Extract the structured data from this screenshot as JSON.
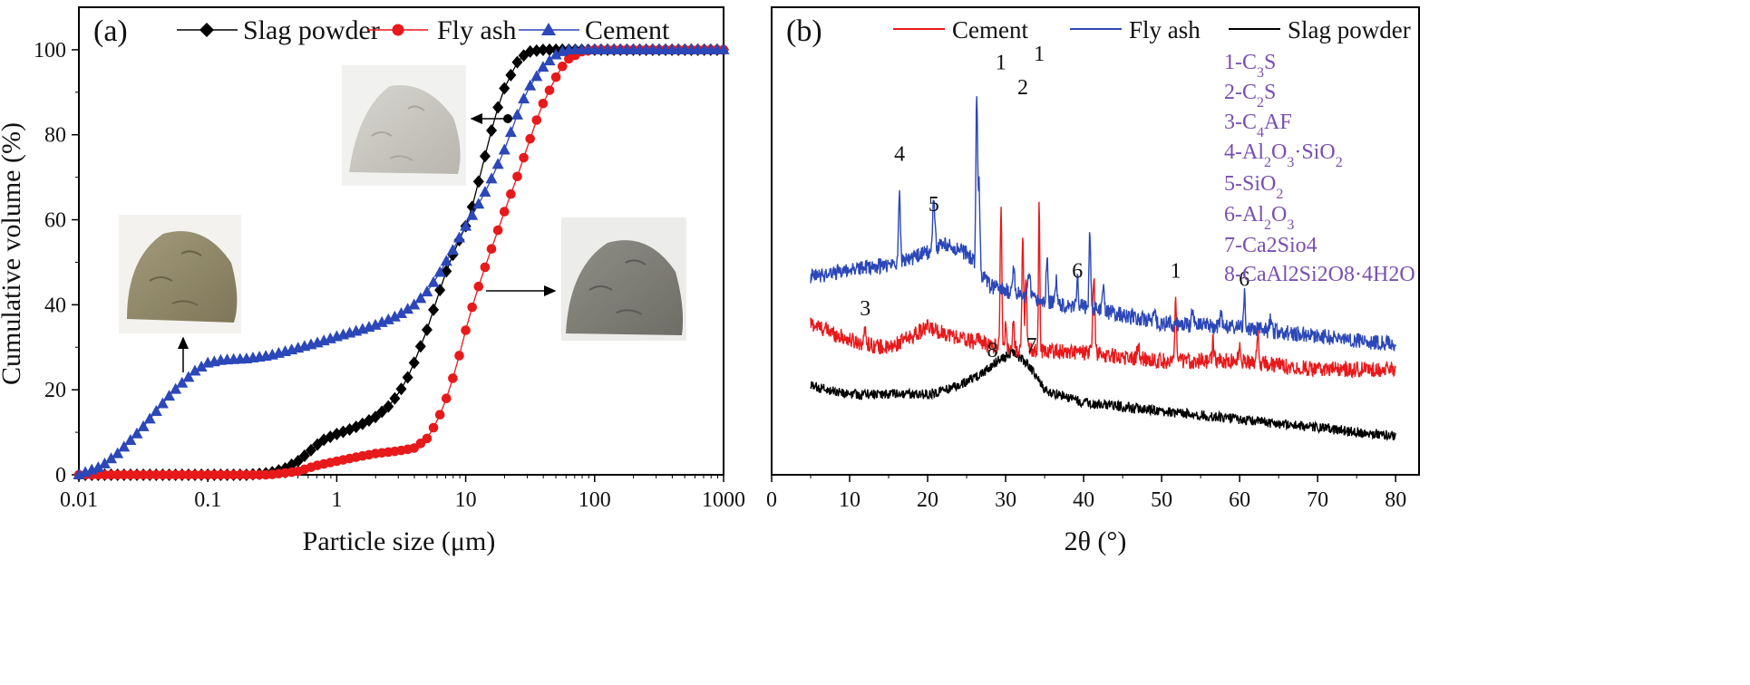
{
  "colors": {
    "slag": "#000000",
    "fly_ash": "#e8191b",
    "cement": "#2b47b8",
    "phase_text": "#7a4fb0"
  },
  "chart_data": [
    {
      "type": "line",
      "panel_label": "(a)",
      "title": "",
      "xlabel": "Particle size (μm)",
      "ylabel": "Cumulative volume (%)",
      "xscale": "log",
      "xlim": [
        0.01,
        1000
      ],
      "ylim": [
        0,
        110
      ],
      "xticks": [
        0.01,
        0.1,
        1,
        10,
        100,
        1000
      ],
      "xtick_labels": [
        "0.01",
        "0.1",
        "1",
        "10",
        "100",
        "1000"
      ],
      "yticks": [
        0,
        20,
        40,
        60,
        80,
        100
      ],
      "ytick_labels": [
        "0",
        "20",
        "40",
        "60",
        "80",
        "100"
      ],
      "legend_position": "top-center",
      "series": [
        {
          "name": "Slag powder",
          "marker": "diamond",
          "color": "#000000",
          "x": [
            0.01,
            0.03,
            0.1,
            0.2,
            0.3,
            0.4,
            0.5,
            0.6,
            0.7,
            0.8,
            1.0,
            1.2,
            1.5,
            2.0,
            2.5,
            3.0,
            3.5,
            4.0,
            5.0,
            6.0,
            7.0,
            8.0,
            9.0,
            10.0,
            11.0,
            12.0,
            14.0,
            16.0,
            18.0,
            20.0,
            25.0,
            30.0,
            40.0,
            60.0,
            100.0,
            1000.0
          ],
          "y": [
            0,
            0,
            0,
            0,
            0.4,
            1.5,
            3.2,
            5.2,
            7.0,
            8.3,
            9.6,
            10.4,
            11.6,
            13.6,
            16.0,
            19.0,
            22.5,
            26.5,
            34.0,
            41.5,
            47.5,
            52.0,
            55.5,
            58.5,
            62.0,
            66.5,
            74.5,
            81.5,
            87.0,
            91.0,
            97.0,
            99.5,
            100,
            100,
            100,
            100
          ]
        },
        {
          "name": "Fly ash",
          "marker": "circle",
          "color": "#e8191b",
          "x": [
            0.01,
            0.1,
            0.3,
            0.5,
            0.7,
            1.0,
            1.5,
            2.0,
            3.0,
            4.0,
            5.0,
            6.0,
            7.0,
            8.0,
            9.0,
            10.0,
            11.0,
            12.0,
            13.0,
            14.0,
            16.0,
            18.0,
            20.0,
            25.0,
            30.0,
            35.0,
            40.0,
            50.0,
            60.0,
            80.0,
            100.0,
            1000.0
          ],
          "y": [
            0,
            0,
            0,
            0.8,
            2.2,
            3.2,
            4.3,
            5.0,
            5.6,
            6.3,
            8.5,
            12.5,
            17.5,
            23.0,
            28.5,
            34.0,
            38.5,
            42.5,
            45.5,
            48.5,
            53.5,
            58.0,
            62.0,
            70.0,
            77.0,
            83.0,
            87.5,
            93.5,
            97.5,
            99.6,
            100,
            100
          ]
        },
        {
          "name": "Cement",
          "marker": "triangle",
          "color": "#2b47b8",
          "x": [
            0.01,
            0.015,
            0.02,
            0.03,
            0.04,
            0.05,
            0.06,
            0.07,
            0.08,
            0.1,
            0.13,
            0.2,
            0.3,
            0.5,
            0.7,
            1.0,
            1.5,
            2.0,
            3.0,
            4.0,
            5.0,
            6.0,
            7.0,
            8.0,
            9.0,
            10.0,
            12.0,
            15.0,
            20.0,
            25.0,
            30.0,
            40.0,
            50.0,
            60.0,
            70.0,
            100.0,
            1000.0
          ],
          "y": [
            0,
            2.0,
            5.0,
            10.5,
            15.0,
            18.5,
            21.0,
            22.8,
            24.5,
            26.3,
            27.0,
            27.3,
            28.0,
            29.8,
            31.0,
            32.5,
            34.0,
            35.2,
            37.5,
            40.0,
            43.0,
            46.5,
            50.0,
            53.0,
            56.0,
            58.5,
            62.5,
            68.0,
            76.5,
            84.5,
            90.5,
            96.0,
            98.8,
            100,
            100,
            100,
            100
          ]
        }
      ],
      "annotations": [
        "slag powder photo → Slag powder curve",
        "fly ash photo → Fly ash curve",
        "cement photo → Cement curve"
      ]
    },
    {
      "type": "line",
      "panel_label": "(b)",
      "title": "",
      "xlabel": "2θ (°)",
      "ylabel": "",
      "xlim": [
        0,
        83
      ],
      "xticks": [
        0,
        10,
        20,
        30,
        40,
        50,
        60,
        70,
        80
      ],
      "xtick_labels": [
        "0",
        "10",
        "20",
        "30",
        "40",
        "50",
        "60",
        "70",
        "80"
      ],
      "legend_position": "top",
      "series": [
        {
          "name": "Cement",
          "color": "#e8191b",
          "baseline": [
            [
              5,
              35
            ],
            [
              10,
              31
            ],
            [
              15,
              29
            ],
            [
              20,
              34
            ],
            [
              25,
              31
            ],
            [
              30,
              29
            ],
            [
              40,
              28
            ],
            [
              50,
              26
            ],
            [
              60,
              26
            ],
            [
              70,
              24
            ],
            [
              80,
              24
            ]
          ],
          "peaks": [
            [
              12.0,
              3,
              0.2
            ],
            [
              26.5,
              2,
              0.2
            ],
            [
              29.4,
              34,
              0.15
            ],
            [
              30.0,
              6,
              0.15
            ],
            [
              31.0,
              6,
              0.15
            ],
            [
              32.2,
              27,
              0.15
            ],
            [
              32.6,
              18,
              0.15
            ],
            [
              34.3,
              37,
              0.12
            ],
            [
              41.3,
              18,
              0.2
            ],
            [
              47.0,
              3,
              0.2
            ],
            [
              51.8,
              14,
              0.15
            ],
            [
              56.6,
              5,
              0.15
            ],
            [
              60.0,
              3,
              0.2
            ],
            [
              62.3,
              8,
              0.15
            ]
          ]
        },
        {
          "name": "Fly ash",
          "color": "#2b47b8",
          "baseline": [
            [
              5,
              46
            ],
            [
              10,
              48
            ],
            [
              15,
              49
            ],
            [
              20,
              52
            ],
            [
              22,
              54
            ],
            [
              25,
              52
            ],
            [
              28,
              44
            ],
            [
              35,
              40
            ],
            [
              40,
              39
            ],
            [
              50,
              35
            ],
            [
              60,
              34
            ],
            [
              70,
              32
            ],
            [
              80,
              30
            ]
          ],
          "peaks": [
            [
              16.4,
              18,
              0.15
            ],
            [
              20.8,
              12,
              0.2
            ],
            [
              26.3,
              42,
              0.15
            ],
            [
              26.6,
              20,
              0.15
            ],
            [
              31.0,
              6,
              0.2
            ],
            [
              33.0,
              6,
              0.2
            ],
            [
              35.3,
              11,
              0.15
            ],
            [
              36.5,
              7,
              0.15
            ],
            [
              39.2,
              8,
              0.15
            ],
            [
              40.8,
              18,
              0.15
            ],
            [
              42.5,
              6,
              0.2
            ],
            [
              49.0,
              3,
              0.2
            ],
            [
              54.0,
              4,
              0.2
            ],
            [
              57.6,
              3,
              0.2
            ],
            [
              60.6,
              8,
              0.15
            ],
            [
              64.0,
              3,
              0.2
            ]
          ]
        },
        {
          "name": "Slag powder",
          "color": "#000000",
          "baseline": [
            [
              5,
              20
            ],
            [
              10,
              18
            ],
            [
              15,
              18
            ],
            [
              20,
              18
            ],
            [
              24,
              20
            ],
            [
              27,
              23
            ],
            [
              29,
              26
            ],
            [
              31,
              28
            ],
            [
              33,
              25
            ],
            [
              35,
              19
            ],
            [
              40,
              16
            ],
            [
              50,
              14
            ],
            [
              60,
              12
            ],
            [
              70,
              10
            ],
            [
              80,
              8
            ]
          ]
        }
      ],
      "peak_labels": [
        {
          "text": "1",
          "x": 29.4,
          "y": 96
        },
        {
          "text": "1",
          "x": 34.3,
          "y": 98
        },
        {
          "text": "2",
          "x": 32.2,
          "y": 90
        },
        {
          "text": "4",
          "x": 16.4,
          "y": 74
        },
        {
          "text": "5",
          "x": 20.8,
          "y": 62
        },
        {
          "text": "6",
          "x": 39.2,
          "y": 46
        },
        {
          "text": "1",
          "x": 51.8,
          "y": 46
        },
        {
          "text": "6",
          "x": 60.6,
          "y": 44
        },
        {
          "text": "3",
          "x": 12.0,
          "y": 37
        },
        {
          "text": "8",
          "x": 28.3,
          "y": 27
        },
        {
          "text": "7",
          "x": 33.3,
          "y": 28
        }
      ],
      "phase_legend": [
        {
          "label": "1-C",
          "sub": "3",
          "rest": "S"
        },
        {
          "label": "2-C",
          "sub": "2",
          "rest": "S"
        },
        {
          "label": "3-C",
          "sub": "4",
          "rest": "AF"
        },
        {
          "label": "4-Al",
          "sub": "2",
          "mid": "O",
          "sub2": "3",
          "rest": "·SiO",
          "sub3": "2"
        },
        {
          "label": "5-SiO",
          "sub": "2",
          "rest": ""
        },
        {
          "label": "6-Al",
          "sub": "2",
          "mid": "O",
          "sub2": "3",
          "rest": ""
        },
        {
          "label": "7-Ca2Sio4"
        },
        {
          "label": "8-CaAl2Si2O8·4H2O"
        }
      ]
    }
  ]
}
